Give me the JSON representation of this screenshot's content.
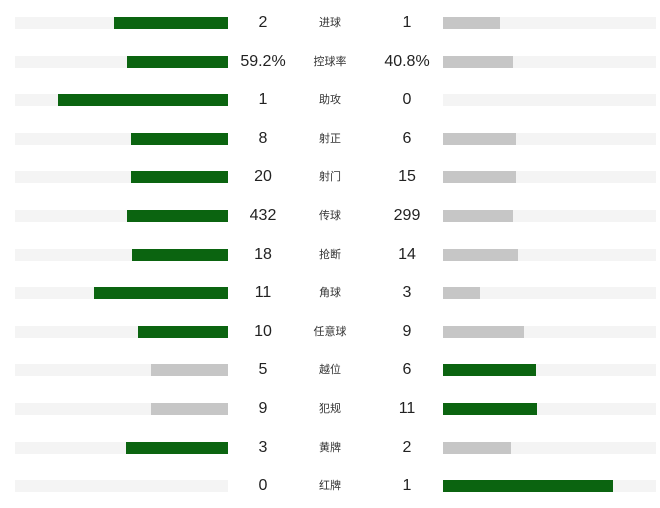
{
  "colors": {
    "leader": "#0b6410",
    "trailer": "#c6c6c6",
    "track": "#f4f4f4"
  },
  "stats": [
    {
      "label": "进球",
      "home": "2",
      "away": "1"
    },
    {
      "label": "控球率",
      "home": "59.2%",
      "away": "40.8%"
    },
    {
      "label": "助攻",
      "home": "1",
      "away": "0"
    },
    {
      "label": "射正",
      "home": "8",
      "away": "6"
    },
    {
      "label": "射门",
      "home": "20",
      "away": "15"
    },
    {
      "label": "传球",
      "home": "432",
      "away": "299"
    },
    {
      "label": "抢断",
      "home": "18",
      "away": "14"
    },
    {
      "label": "角球",
      "home": "11",
      "away": "3"
    },
    {
      "label": "任意球",
      "home": "10",
      "away": "9"
    },
    {
      "label": "越位",
      "home": "5",
      "away": "6"
    },
    {
      "label": "犯规",
      "home": "9",
      "away": "11"
    },
    {
      "label": "黄牌",
      "home": "3",
      "away": "2"
    },
    {
      "label": "红牌",
      "home": "0",
      "away": "1"
    }
  ]
}
